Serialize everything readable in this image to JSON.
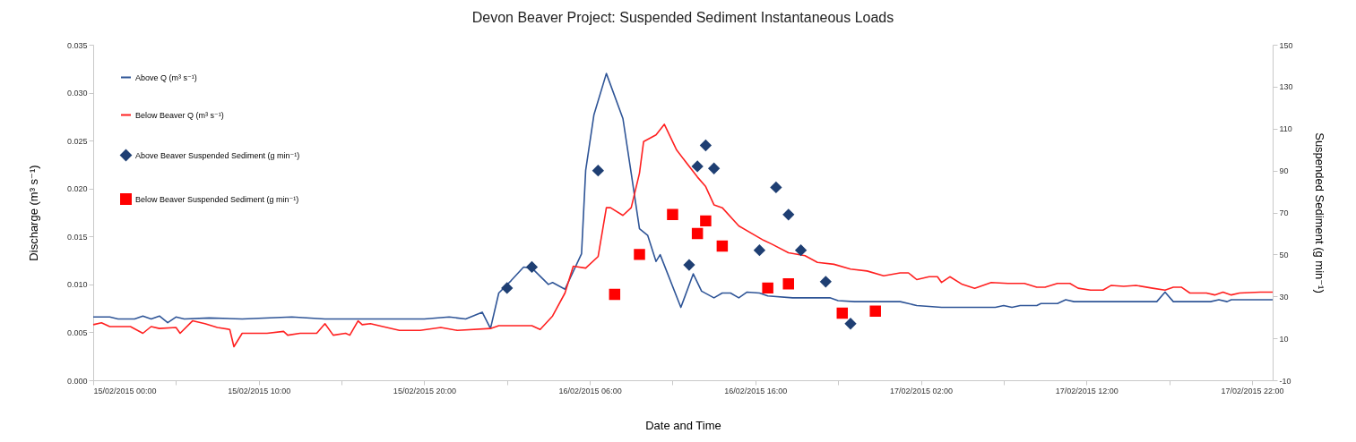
{
  "chart_data": {
    "type": "line",
    "title": "Devon Beaver Project: Suspended Sediment  Instantaneous  Loads",
    "xlabel": "Date and Time",
    "ylabel": "Discharge (m³ s⁻¹)",
    "y2label": "Suspended Sediment (g min⁻¹)",
    "xlim": [
      "2015-02-15T00:00",
      "2015-02-17T23:15"
    ],
    "xticks": [
      {
        "value": "2015-02-15T00:00",
        "label": "15/02/2015 00:00"
      },
      {
        "value": "2015-02-15T05:00",
        "label": null
      },
      {
        "value": "2015-02-15T10:00",
        "label": "15/02/2015 10:00"
      },
      {
        "value": "2015-02-15T15:00",
        "label": null
      },
      {
        "value": "2015-02-15T20:00",
        "label": "15/02/2015 20:00"
      },
      {
        "value": "2015-02-16T01:00",
        "label": null
      },
      {
        "value": "2015-02-16T06:00",
        "label": "16/02/2015 06:00"
      },
      {
        "value": "2015-02-16T11:00",
        "label": null
      },
      {
        "value": "2015-02-16T16:00",
        "label": "16/02/2015 16:00"
      },
      {
        "value": "2015-02-16T21:00",
        "label": null
      },
      {
        "value": "2015-02-17T02:00",
        "label": "17/02/2015 02:00"
      },
      {
        "value": "2015-02-17T07:00",
        "label": null
      },
      {
        "value": "2015-02-17T12:00",
        "label": "17/02/2015 12:00"
      },
      {
        "value": "2015-02-17T17:00",
        "label": null
      },
      {
        "value": "2015-02-17T22:00",
        "label": "17/02/2015 22:00"
      }
    ],
    "ylim": [
      0,
      0.035
    ],
    "yticks": [
      {
        "value": 0,
        "label": "0.000"
      },
      {
        "value": 0.005,
        "label": "0.005"
      },
      {
        "value": 0.01,
        "label": "0.010"
      },
      {
        "value": 0.015,
        "label": "0.015"
      },
      {
        "value": 0.02,
        "label": "0.020"
      },
      {
        "value": 0.025,
        "label": "0.025"
      },
      {
        "value": 0.03,
        "label": "0.030"
      },
      {
        "value": 0.035,
        "label": "0.035"
      }
    ],
    "y2lim": [
      -10,
      150
    ],
    "y2ticks": [
      -10,
      10,
      30,
      50,
      70,
      90,
      110,
      130,
      150
    ],
    "grid": false,
    "legend": "top left",
    "line_style": "solid",
    "series": [
      {
        "name": "Above Q (m³ s⁻¹)",
        "color": "#2f5597",
        "x": [
          "2015-02-15T00:00",
          "2015-02-15T01:00",
          "2015-02-15T01:30",
          "2015-02-15T02:30",
          "2015-02-15T03:00",
          "2015-02-15T03:30",
          "2015-02-15T04:00",
          "2015-02-15T04:30",
          "2015-02-15T05:00",
          "2015-02-15T05:30",
          "2015-02-15T07:00",
          "2015-02-15T09:00",
          "2015-02-15T12:00",
          "2015-02-15T14:00",
          "2015-02-15T17:00",
          "2015-02-15T20:00",
          "2015-02-15T21:30",
          "2015-02-15T22:30",
          "2015-02-15T23:30",
          "2015-02-16T00:00",
          "2015-02-16T00:30",
          "2015-02-16T01:15",
          "2015-02-16T02:00",
          "2015-02-16T02:30",
          "2015-02-16T03:30",
          "2015-02-16T03:45",
          "2015-02-16T04:30",
          "2015-02-16T05:30",
          "2015-02-16T05:45",
          "2015-02-16T06:15",
          "2015-02-16T07:00",
          "2015-02-16T08:00",
          "2015-02-16T08:30",
          "2015-02-16T09:00",
          "2015-02-16T09:30",
          "2015-02-16T10:00",
          "2015-02-16T10:15",
          "2015-02-16T11:30",
          "2015-02-16T12:15",
          "2015-02-16T12:45",
          "2015-02-16T13:30",
          "2015-02-16T14:00",
          "2015-02-16T14:30",
          "2015-02-16T15:00",
          "2015-02-16T15:30",
          "2015-02-16T16:15",
          "2015-02-16T16:45",
          "2015-02-16T18:15",
          "2015-02-16T20:30",
          "2015-02-16T21:00",
          "2015-02-16T22:00",
          "2015-02-17T00:45",
          "2015-02-17T01:45",
          "2015-02-17T03:15",
          "2015-02-17T06:30",
          "2015-02-17T07:00",
          "2015-02-17T07:30",
          "2015-02-17T08:00",
          "2015-02-17T09:00",
          "2015-02-17T09:15",
          "2015-02-17T10:15",
          "2015-02-17T10:45",
          "2015-02-17T11:15",
          "2015-02-17T16:15",
          "2015-02-17T16:45",
          "2015-02-17T17:15",
          "2015-02-17T19:30",
          "2015-02-17T20:00",
          "2015-02-17T20:30",
          "2015-02-17T20:45",
          "2015-02-17T23:15"
        ],
        "values": [
          0.0066,
          0.0066,
          0.0064,
          0.0064,
          0.0067,
          0.0064,
          0.0067,
          0.006,
          0.0066,
          0.0064,
          0.0065,
          0.0064,
          0.0066,
          0.0064,
          0.0064,
          0.0064,
          0.0066,
          0.0064,
          0.0071,
          0.0054,
          0.0091,
          0.0104,
          0.0118,
          0.0117,
          0.01,
          0.0102,
          0.0095,
          0.0132,
          0.0219,
          0.0277,
          0.032,
          0.0273,
          0.0216,
          0.0158,
          0.0151,
          0.0124,
          0.0131,
          0.0076,
          0.0111,
          0.0093,
          0.0086,
          0.0091,
          0.0091,
          0.0086,
          0.0092,
          0.0091,
          0.0088,
          0.0086,
          0.0086,
          0.0083,
          0.0082,
          0.0082,
          0.0078,
          0.0076,
          0.0076,
          0.0078,
          0.0076,
          0.0078,
          0.0078,
          0.008,
          0.008,
          0.0084,
          0.0082,
          0.0082,
          0.0092,
          0.0082,
          0.0082,
          0.0084,
          0.0082,
          0.0084,
          0.0084
        ]
      },
      {
        "name": "Below Beaver Q (m³ s⁻¹)",
        "color": "#ff2020",
        "x": [
          "2015-02-15T00:00",
          "2015-02-15T00:30",
          "2015-02-15T01:00",
          "2015-02-15T02:15",
          "2015-02-15T03:00",
          "2015-02-15T03:30",
          "2015-02-15T04:00",
          "2015-02-15T05:00",
          "2015-02-15T05:15",
          "2015-02-15T06:00",
          "2015-02-15T06:45",
          "2015-02-15T07:30",
          "2015-02-15T08:15",
          "2015-02-15T08:30",
          "2015-02-15T09:00",
          "2015-02-15T10:30",
          "2015-02-15T11:30",
          "2015-02-15T11:45",
          "2015-02-15T12:30",
          "2015-02-15T13:30",
          "2015-02-15T14:00",
          "2015-02-15T14:30",
          "2015-02-15T15:15",
          "2015-02-15T15:30",
          "2015-02-15T16:00",
          "2015-02-15T16:15",
          "2015-02-15T16:45",
          "2015-02-15T17:30",
          "2015-02-15T18:30",
          "2015-02-15T19:45",
          "2015-02-15T21:00",
          "2015-02-15T22:00",
          "2015-02-16T00:00",
          "2015-02-16T00:30",
          "2015-02-16T02:30",
          "2015-02-16T03:00",
          "2015-02-16T03:45",
          "2015-02-16T04:30",
          "2015-02-16T05:00",
          "2015-02-16T05:45",
          "2015-02-16T06:30",
          "2015-02-16T07:00",
          "2015-02-16T07:15",
          "2015-02-16T08:00",
          "2015-02-16T08:30",
          "2015-02-16T09:00",
          "2015-02-16T09:15",
          "2015-02-16T10:00",
          "2015-02-16T10:30",
          "2015-02-16T11:15",
          "2015-02-16T12:30",
          "2015-02-16T13:00",
          "2015-02-16T13:30",
          "2015-02-16T14:00",
          "2015-02-16T15:00",
          "2015-02-16T16:30",
          "2015-02-16T17:00",
          "2015-02-16T18:00",
          "2015-02-16T19:00",
          "2015-02-16T19:45",
          "2015-02-16T20:45",
          "2015-02-16T21:45",
          "2015-02-16T22:45",
          "2015-02-16T23:45",
          "2015-02-17T00:45",
          "2015-02-17T01:15",
          "2015-02-17T01:45",
          "2015-02-17T02:30",
          "2015-02-17T03:00",
          "2015-02-17T03:15",
          "2015-02-17T03:45",
          "2015-02-17T04:30",
          "2015-02-17T05:15",
          "2015-02-17T06:15",
          "2015-02-17T07:15",
          "2015-02-17T08:15",
          "2015-02-17T09:00",
          "2015-02-17T09:30",
          "2015-02-17T10:15",
          "2015-02-17T11:00",
          "2015-02-17T11:30",
          "2015-02-17T12:15",
          "2015-02-17T13:00",
          "2015-02-17T13:30",
          "2015-02-17T14:15",
          "2015-02-17T15:00",
          "2015-02-17T16:00",
          "2015-02-17T16:45",
          "2015-02-17T17:15",
          "2015-02-17T17:45",
          "2015-02-17T18:15",
          "2015-02-17T19:15",
          "2015-02-17T19:45",
          "2015-02-17T20:15",
          "2015-02-17T20:45",
          "2015-02-17T21:15",
          "2015-02-17T22:30",
          "2015-02-17T23:15"
        ],
        "values": [
          0.0058,
          0.006,
          0.0056,
          0.0056,
          0.0049,
          0.0056,
          0.0054,
          0.0055,
          0.0049,
          0.0062,
          0.0059,
          0.0055,
          0.0053,
          0.0035,
          0.0049,
          0.0049,
          0.0051,
          0.0047,
          0.0049,
          0.0049,
          0.0059,
          0.0047,
          0.0049,
          0.0047,
          0.0062,
          0.0058,
          0.0059,
          0.0056,
          0.0052,
          0.0052,
          0.0055,
          0.0052,
          0.0054,
          0.0057,
          0.0057,
          0.0053,
          0.0067,
          0.0091,
          0.0119,
          0.0117,
          0.0129,
          0.018,
          0.018,
          0.0172,
          0.018,
          0.0216,
          0.0249,
          0.0256,
          0.0267,
          0.024,
          0.0212,
          0.0202,
          0.0183,
          0.018,
          0.0161,
          0.0146,
          0.0142,
          0.0133,
          0.013,
          0.0123,
          0.0121,
          0.0116,
          0.0114,
          0.0109,
          0.0112,
          0.0112,
          0.0105,
          0.0108,
          0.0108,
          0.0102,
          0.0108,
          0.01,
          0.0096,
          0.0102,
          0.0101,
          0.0101,
          0.0097,
          0.0097,
          0.0101,
          0.0101,
          0.0096,
          0.0094,
          0.0094,
          0.0099,
          0.0098,
          0.0099,
          0.0096,
          0.0094,
          0.0097,
          0.0097,
          0.0091,
          0.0091,
          0.0089,
          0.0092,
          0.0089,
          0.0091,
          0.0092,
          0.0092
        ]
      },
      {
        "name": "Above Beaver Suspended Sediment (g min⁻¹)",
        "type": "scatter",
        "axis": "y2",
        "marker": "diamond",
        "color": "#1f3f73",
        "x": [
          "2015-02-16T01:00",
          "2015-02-16T02:30",
          "2015-02-16T06:30",
          "2015-02-16T12:00",
          "2015-02-16T12:30",
          "2015-02-16T13:00",
          "2015-02-16T13:30",
          "2015-02-16T16:15",
          "2015-02-16T17:15",
          "2015-02-16T18:00",
          "2015-02-16T18:45",
          "2015-02-16T20:15",
          "2015-02-16T21:45"
        ],
        "values": [
          34,
          44,
          90,
          45,
          92,
          102,
          91,
          52,
          82,
          69,
          52,
          37,
          17
        ]
      },
      {
        "name": "Below Beaver Suspended Sediment (g min⁻¹)",
        "type": "scatter",
        "axis": "y2",
        "marker": "square",
        "color": "#ff0000",
        "x": [
          "2015-02-16T07:30",
          "2015-02-16T09:00",
          "2015-02-16T11:00",
          "2015-02-16T12:30",
          "2015-02-16T13:00",
          "2015-02-16T14:00",
          "2015-02-16T16:45",
          "2015-02-16T18:00",
          "2015-02-16T21:15",
          "2015-02-16T23:15"
        ],
        "values": [
          31,
          50,
          69,
          60,
          66,
          54,
          34,
          36,
          22,
          23
        ]
      }
    ]
  }
}
